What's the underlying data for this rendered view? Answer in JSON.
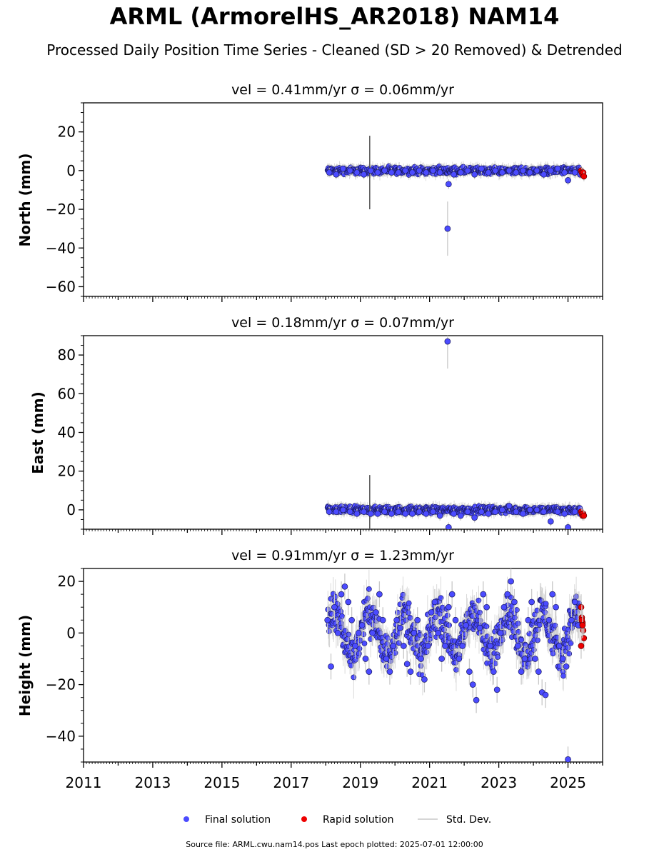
{
  "header": {
    "title": "ARML (ArmorelHS_AR2018) NAM14",
    "subtitle": "Processed Daily Position Time Series - Cleaned (SD > 20 Removed) & Detrended"
  },
  "chart_data": [
    {
      "type": "scatter",
      "title": "vel = 0.41mm/yr   σ = 0.06mm/yr",
      "ylabel": "North (mm)",
      "xlim": [
        2011,
        2026
      ],
      "ylim": [
        -65,
        35
      ],
      "yticks": [
        20,
        0,
        -20,
        -40,
        -60
      ],
      "ytick_labels": [
        "20",
        "0",
        "−20",
        "−40",
        "−60"
      ],
      "series": [
        {
          "name": "Final solution",
          "color": "#4b4bff",
          "x": [
            2018.1,
            2018.3,
            2018.5,
            2018.7,
            2018.9,
            2019.1,
            2019.3,
            2019.5,
            2019.7,
            2019.9,
            2020.1,
            2020.3,
            2020.5,
            2020.7,
            2020.9,
            2021.1,
            2021.3,
            2021.52,
            2021.55,
            2021.7,
            2021.9,
            2022.1,
            2022.3,
            2022.5,
            2022.7,
            2022.9,
            2023.1,
            2023.3,
            2023.5,
            2023.7,
            2023.9,
            2024.1,
            2024.3,
            2024.5,
            2024.7,
            2024.9,
            2025.0,
            2025.2,
            2025.35
          ],
          "y": [
            -1,
            -2,
            1,
            0,
            -1,
            -2,
            0,
            -1,
            0,
            -1,
            -1,
            0,
            -1,
            0,
            -1,
            0,
            -1,
            -30,
            -7,
            -2,
            -1,
            0,
            -2,
            1,
            -1,
            0,
            -1,
            0,
            -1,
            0,
            -1,
            0,
            -2,
            0,
            1,
            -1,
            -5,
            -1,
            -2
          ]
        },
        {
          "name": "Rapid solution",
          "color": "#ee0000",
          "x": [
            2025.38,
            2025.4,
            2025.42,
            2025.44,
            2025.46
          ],
          "y": [
            0,
            -1,
            -2,
            -1,
            -3
          ]
        }
      ]
    },
    {
      "type": "scatter",
      "title": "vel = 0.18mm/yr   σ = 0.07mm/yr",
      "ylabel": "East (mm)",
      "xlim": [
        2011,
        2026
      ],
      "ylim": [
        -10,
        90
      ],
      "yticks": [
        80,
        60,
        40,
        20,
        0
      ],
      "ytick_labels": [
        "80",
        "60",
        "40",
        "20",
        "0"
      ],
      "series": [
        {
          "name": "Final solution",
          "color": "#4b4bff",
          "x": [
            2018.1,
            2018.3,
            2018.5,
            2018.7,
            2018.9,
            2019.1,
            2019.3,
            2019.5,
            2019.7,
            2019.9,
            2020.1,
            2020.3,
            2020.5,
            2020.7,
            2020.9,
            2021.1,
            2021.3,
            2021.52,
            2021.55,
            2021.7,
            2021.9,
            2022.1,
            2022.3,
            2022.5,
            2022.7,
            2022.9,
            2023.1,
            2023.3,
            2023.5,
            2023.7,
            2023.9,
            2024.1,
            2024.3,
            2024.5,
            2024.7,
            2024.9,
            2025.0,
            2025.2,
            2025.35
          ],
          "y": [
            -1,
            -1,
            0,
            -1,
            -2,
            -1,
            -2,
            -2,
            -1,
            -2,
            -1,
            -2,
            -2,
            -1,
            -2,
            -1,
            -3,
            87,
            -9,
            -2,
            -3,
            -1,
            -4,
            -1,
            -2,
            -1,
            0,
            2,
            -1,
            -2,
            0,
            0,
            -1,
            -6,
            -1,
            -2,
            -9,
            -1,
            -2
          ]
        },
        {
          "name": "Rapid solution",
          "color": "#ee0000",
          "x": [
            2025.38,
            2025.4,
            2025.42,
            2025.44,
            2025.46
          ],
          "y": [
            -1,
            -2,
            -3,
            -2,
            -3
          ]
        }
      ]
    },
    {
      "type": "scatter",
      "title": "vel = 0.91mm/yr   σ = 1.23mm/yr",
      "ylabel": "Height (mm)",
      "xlim": [
        2011,
        2026
      ],
      "ylim": [
        -50,
        25
      ],
      "yticks": [
        20,
        0,
        -20,
        -40
      ],
      "ytick_labels": [
        "20",
        "0",
        "−20",
        "−40"
      ],
      "xticks": [
        2011,
        2013,
        2015,
        2017,
        2019,
        2021,
        2023,
        2025
      ],
      "xtick_labels": [
        "2011",
        "2013",
        "2015",
        "2017",
        "2019",
        "2021",
        "2023",
        "2025"
      ],
      "series": [
        {
          "name": "Final solution",
          "color": "#4b4bff",
          "x": [
            2018.05,
            2018.15,
            2018.25,
            2018.35,
            2018.45,
            2018.55,
            2018.65,
            2018.75,
            2018.85,
            2018.95,
            2019.05,
            2019.15,
            2019.25,
            2019.35,
            2019.45,
            2019.55,
            2019.65,
            2019.75,
            2019.85,
            2019.95,
            2020.05,
            2020.15,
            2020.25,
            2020.35,
            2020.45,
            2020.55,
            2020.65,
            2020.75,
            2020.85,
            2020.95,
            2021.05,
            2021.15,
            2021.25,
            2021.35,
            2021.45,
            2021.55,
            2021.65,
            2021.75,
            2021.85,
            2021.95,
            2022.05,
            2022.15,
            2022.25,
            2022.35,
            2022.45,
            2022.55,
            2022.65,
            2022.75,
            2022.85,
            2022.95,
            2023.05,
            2023.15,
            2023.25,
            2023.35,
            2023.45,
            2023.55,
            2023.65,
            2023.75,
            2023.85,
            2023.95,
            2024.05,
            2024.15,
            2024.25,
            2024.35,
            2024.45,
            2024.55,
            2024.65,
            2024.75,
            2024.85,
            2024.95,
            2025.0,
            2025.1,
            2025.2,
            2025.3
          ],
          "y": [
            5,
            -13,
            10,
            0,
            15,
            18,
            12,
            5,
            -5,
            0,
            3,
            -10,
            -15,
            0,
            8,
            15,
            5,
            -10,
            -15,
            -5,
            5,
            2,
            -5,
            -12,
            -15,
            0,
            5,
            -10,
            -18,
            -5,
            8,
            12,
            0,
            -10,
            -5,
            10,
            15,
            5,
            -10,
            -5,
            3,
            -15,
            -20,
            -26,
            2,
            15,
            10,
            -5,
            -15,
            -22,
            0,
            10,
            15,
            20,
            12,
            -5,
            -15,
            -10,
            5,
            12,
            -10,
            -15,
            -23,
            -24,
            5,
            15,
            10,
            -5,
            -10,
            -13,
            -49,
            5,
            12,
            3
          ]
        },
        {
          "name": "Rapid solution",
          "color": "#ee0000",
          "x": [
            2025.38,
            2025.4,
            2025.42,
            2025.44,
            2025.46,
            2025.38,
            2025.4,
            2025.42
          ],
          "y": [
            10,
            6,
            4,
            1,
            -2,
            -5,
            5,
            3
          ]
        }
      ]
    }
  ],
  "legend": {
    "final_label": "Final solution",
    "rapid_label": "Rapid solution",
    "std_label": "Std. Dev."
  },
  "footer": {
    "text": "Source file: ARML.cwu.nam14.pos  Last epoch plotted: 2025-07-01 12:00:00"
  },
  "colors": {
    "final": "#4b4bff",
    "rapid": "#ee0000",
    "stddev": "#c8c8c8"
  }
}
